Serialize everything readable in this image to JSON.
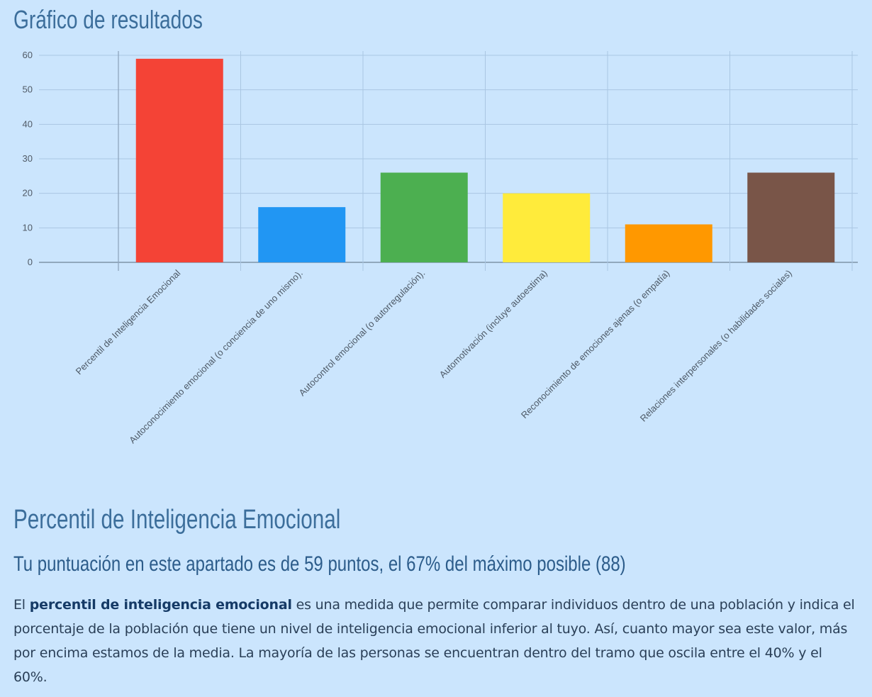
{
  "page": {
    "title": "Gráfico de resultados",
    "section_title": "Percentil de Inteligencia Emocional",
    "score_line": "Tu puntuación en este apartado es de 59 puntos, el 67% del máximo posible (88)",
    "description": {
      "before": "El ",
      "bold": "percentil de inteligencia emocional",
      "after": " es una medida que permite comparar individuos dentro de una población y indica el porcentaje de la población que tiene un nivel de inteligencia emocional inferior al tuyo. Así, cuanto mayor sea este valor, más por encima estamos de la media. La mayoría de las personas se encuentran dentro del tramo que oscila entre el 40% y el 60%."
    }
  },
  "chart_data": {
    "type": "bar",
    "categories": [
      "Percentil de Inteligencia Emocional",
      "Autoconocimiento emocional (o conciencia de uno mismo).",
      "Autocontrol emocional (o autorregulación).",
      "Automotivación (incluye autoestima)",
      "Reconocimiento de emociones ajenas (o empatía)",
      "Relaciones interpersonales (o habilidades sociales)"
    ],
    "values": [
      59,
      16,
      26,
      20,
      11,
      26
    ],
    "colors": [
      "#f44336",
      "#2196f3",
      "#4caf50",
      "#ffeb3b",
      "#ff9800",
      "#795548"
    ],
    "ylim": [
      0,
      60
    ],
    "yticks": [
      0,
      10,
      20,
      30,
      40,
      50,
      60
    ],
    "grid": true,
    "title": "",
    "xlabel": "",
    "ylabel": ""
  }
}
